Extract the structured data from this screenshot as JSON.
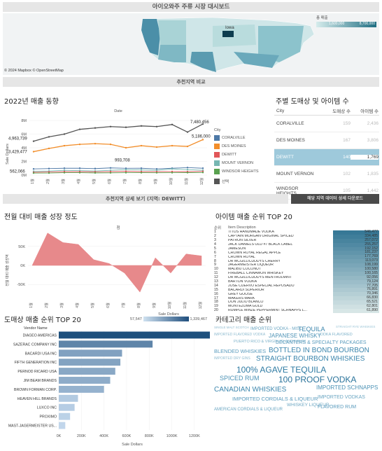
{
  "dashboard_title": "아이오와주 주류 시장 대시보드",
  "map": {
    "legend_title": "총 매출",
    "legend_min": "1,600,000",
    "legend_max": "8,700,000",
    "copyright": "© 2024 Mapbox © OpenStreetMap",
    "iowa_label": "Iowa",
    "colors": {
      "low": "#d6ecec",
      "high": "#1f6e82",
      "iowa": "#0d3d4f",
      "west": "#4b8fa8"
    }
  },
  "compare_bar": "추천지역 비교",
  "trend": {
    "title": "2022년 매출 동향",
    "date_label": "Date",
    "ylabel": "Sale Dollars",
    "y_ticks": [
      "8M",
      "6M",
      "4M",
      "2M",
      "0M"
    ],
    "x_ticks": [
      "1월",
      "2월",
      "3월",
      "4월",
      "5월",
      "6월",
      "7월",
      "8월",
      "9월",
      "10월",
      "11월",
      "12월"
    ],
    "legend_title": "City",
    "legend_items": [
      {
        "name": "CORALVILLE",
        "color": "#4e79a7"
      },
      {
        "name": "DES MOINES",
        "color": "#f28e2b"
      },
      {
        "name": "DEWITT",
        "color": "#e15759"
      },
      {
        "name": "MOUNT VERNON",
        "color": "#76b7b2"
      },
      {
        "name": "WINDSOR HEIGHTS",
        "color": "#59a14f"
      },
      {
        "name": "선택",
        "color": "#555555"
      }
    ],
    "labels": {
      "dm_start": "4,963,739",
      "dm_alt": "3,429,477",
      "black_end": "7,480,456",
      "orange_end": "5,186,000",
      "low_start": "562,066",
      "mid_peak": "993,708"
    }
  },
  "store_table": {
    "title": "주별 도매상 및 아이템 수",
    "headers": [
      "City",
      "도매상 수",
      "아이템 수"
    ],
    "rows": [
      {
        "city": "CORALVILLE",
        "stores": "159",
        "items": "2,436",
        "selected": false
      },
      {
        "city": "DES MOINES",
        "stores": "167",
        "items": "3,806",
        "selected": false
      },
      {
        "city": "DEWITT",
        "stores": "140",
        "items": "1,769",
        "selected": true
      },
      {
        "city": "MOUNT VERNON",
        "stores": "102",
        "items": "1,835",
        "selected": false
      },
      {
        "city": "WINDSOR HEIGHTS",
        "stores": "105",
        "items": "1,442",
        "selected": false
      }
    ]
  },
  "detail_bar": "추천지역 상세 보기 (지역: DEWITT)",
  "download_button": "해당 지역 데이터 상세 다운로드",
  "growth": {
    "title": "전월 대비 매출 성장 정도",
    "sub": "첨",
    "ylabel": "전월 대비 매출 성장액",
    "y_ticks": [
      "50K",
      "0K",
      "-50K"
    ],
    "x_ticks": [
      "1월",
      "2월",
      "3월",
      "4월",
      "5월",
      "6월",
      "7월",
      "8월",
      "9월",
      "10월",
      "11월",
      "12월"
    ]
  },
  "items_rank": {
    "title": "아이템 매출 순위 TOP 20",
    "rank_header": "순위",
    "item_header": "Item Description",
    "rows": [
      {
        "rank": "1",
        "name": "TITOS HANDMADE VODKA",
        "value": "546,477"
      },
      {
        "rank": "2",
        "name": "CAPTAIN MORGAN ORIGINAL SPICED",
        "value": "334,485"
      },
      {
        "rank": "3",
        "name": "PATRON SILVER",
        "value": "257,072"
      },
      {
        "rank": "4",
        "name": "JACK DANIELS OLD #7 BLACK LABEL",
        "value": "255,257"
      },
      {
        "rank": "5",
        "name": "JAMESON",
        "value": "192,152"
      },
      {
        "rank": "6",
        "name": "CROWN ROYAL REGAL APPLE",
        "value": "181,237"
      },
      {
        "rank": "7",
        "name": "CROWN ROYAL",
        "value": "177,769"
      },
      {
        "rank": "8",
        "name": "DR MCGILLICUDDYS CHERRY",
        "value": "113,073"
      },
      {
        "rank": "9",
        "name": "JAGERMEISTER LIQUEUR",
        "value": "108,199"
      },
      {
        "rank": "10",
        "name": "MALIBU COCONUT",
        "value": "100,580"
      },
      {
        "rank": "11",
        "name": "FIREBALL CINNAMON WHISKEY",
        "value": "100,165"
      },
      {
        "rank": "12",
        "name": "DR MCGILLICUDDYS MENTHOLMINT",
        "value": "92,056"
      },
      {
        "rank": "13",
        "name": "BARTON VODKA",
        "value": "79,124"
      },
      {
        "rank": "14",
        "name": "JOSE CUERVO ESPECIAL REPOSADO",
        "value": "77,705"
      },
      {
        "rank": "15",
        "name": "BACARDI SUPERIOR",
        "value": "76,891"
      },
      {
        "rank": "16",
        "name": "GREY GOOSE",
        "value": "70,346"
      },
      {
        "rank": "17",
        "name": "MAKERS MARK",
        "value": "66,830"
      },
      {
        "rank": "18",
        "name": "DON JULIO BLANCO",
        "value": "65,521"
      },
      {
        "rank": "19",
        "name": "MONTEZUMA GOLD",
        "value": "62,801"
      },
      {
        "rank": "20",
        "name": "RUMPLE MINZE PEPPERMINT SCHNAPPS L...",
        "value": "61,890"
      }
    ]
  },
  "vendor": {
    "title": "도매상 매출 순위 TOP 20",
    "legend_title": "Sale Dollars",
    "legend_min": "57,547",
    "legend_max": "1,339,467",
    "header": "Vendor Name",
    "x_ticks": [
      "0K",
      "200K",
      "400K",
      "600K",
      "800K",
      "1000K",
      "1200K"
    ],
    "x_label": "Sale Dollars",
    "rows": [
      {
        "name": "DIAGEO AMERICAS",
        "value": 1339467
      },
      {
        "name": "SAZERAC COMPANY  INC",
        "value": 830000
      },
      {
        "name": "BACARDI USA INC",
        "value": 560000
      },
      {
        "name": "FIFTH GENERATION INC",
        "value": 545000
      },
      {
        "name": "PERNOD RICARD USA",
        "value": 500000
      },
      {
        "name": "JIM BEAM BRANDS",
        "value": 455000
      },
      {
        "name": "BROWN FORMAN CORP.",
        "value": 400000
      },
      {
        "name": "HEAVEN HILL BRANDS",
        "value": 170000
      },
      {
        "name": "LUXCO INC",
        "value": 140000
      },
      {
        "name": "PROXIMO",
        "value": 100000
      },
      {
        "name": "MAST-JAGERMEISTER US...",
        "value": 57547
      }
    ]
  },
  "category": {
    "title": "카테고리 매출 순위",
    "words": [
      {
        "t": "SINGLE MALT SCOTCH",
        "s": 4.5,
        "c": "#8fbcd0"
      },
      {
        "t": "IMPORTED VODKA - MISC",
        "s": 6,
        "c": "#6ba6c2"
      },
      {
        "t": "TEQUILA",
        "s": 9,
        "c": "#3c86ad"
      },
      {
        "t": "STRAIGHT RYE WHISKIES",
        "s": 4.5,
        "c": "#9ec7d8"
      },
      {
        "t": "IMPORTED FLAVORED VODKA",
        "s": 5,
        "c": "#8fbcd0"
      },
      {
        "t": "JAPANESE WHISKY",
        "s": 8,
        "c": "#4d93b6"
      },
      {
        "t": "VODKA FLAVORED",
        "s": 5.5,
        "c": "#7fb3cb"
      },
      {
        "t": "PUERTO RICO & VIRGIN ISLANDS RUM",
        "s": 5.5,
        "c": "#7fb3cb"
      },
      {
        "t": "DECANTERS & SPECIALTY PACKAGES",
        "s": 7,
        "c": "#5a9bbd"
      },
      {
        "t": "BLENDED WHISKIES",
        "s": 7.5,
        "c": "#5a9bbd"
      },
      {
        "t": "BOTTLED IN BOND BOURBON",
        "s": 10,
        "c": "#3c86ad"
      },
      {
        "t": "IMPORTED DRY GINS",
        "s": 5,
        "c": "#8fbcd0"
      },
      {
        "t": "STRAIGHT BOURBON WHISKIES",
        "s": 10,
        "c": "#3c86ad"
      },
      {
        "t": "100% AGAVE TEQUILA",
        "s": 12,
        "c": "#2f7ba3"
      },
      {
        "t": "SPICED RUM",
        "s": 9,
        "c": "#4d93b6"
      },
      {
        "t": "100 PROOF VODKA",
        "s": 12,
        "c": "#2a739b"
      },
      {
        "t": "IMPORTED SCHNAPPS",
        "s": 8,
        "c": "#4d93b6"
      },
      {
        "t": "CANADIAN WHISKIES",
        "s": 10,
        "c": "#3c86ad"
      },
      {
        "t": "IMPORTED CORDIALS & LIQUEUR",
        "s": 7.5,
        "c": "#5a9bbd"
      },
      {
        "t": "IMPORTED VODKAS",
        "s": 7,
        "c": "#6ba6c2"
      },
      {
        "t": "WHISKEY LIQUEUR",
        "s": 6.5,
        "c": "#6ba6c2"
      },
      {
        "t": "FLAVORED RUM",
        "s": 7,
        "c": "#5a9bbd"
      },
      {
        "t": "AMERICAN CORDIALS & LIQUEUR",
        "s": 6,
        "c": "#6ba6c2"
      }
    ]
  }
}
